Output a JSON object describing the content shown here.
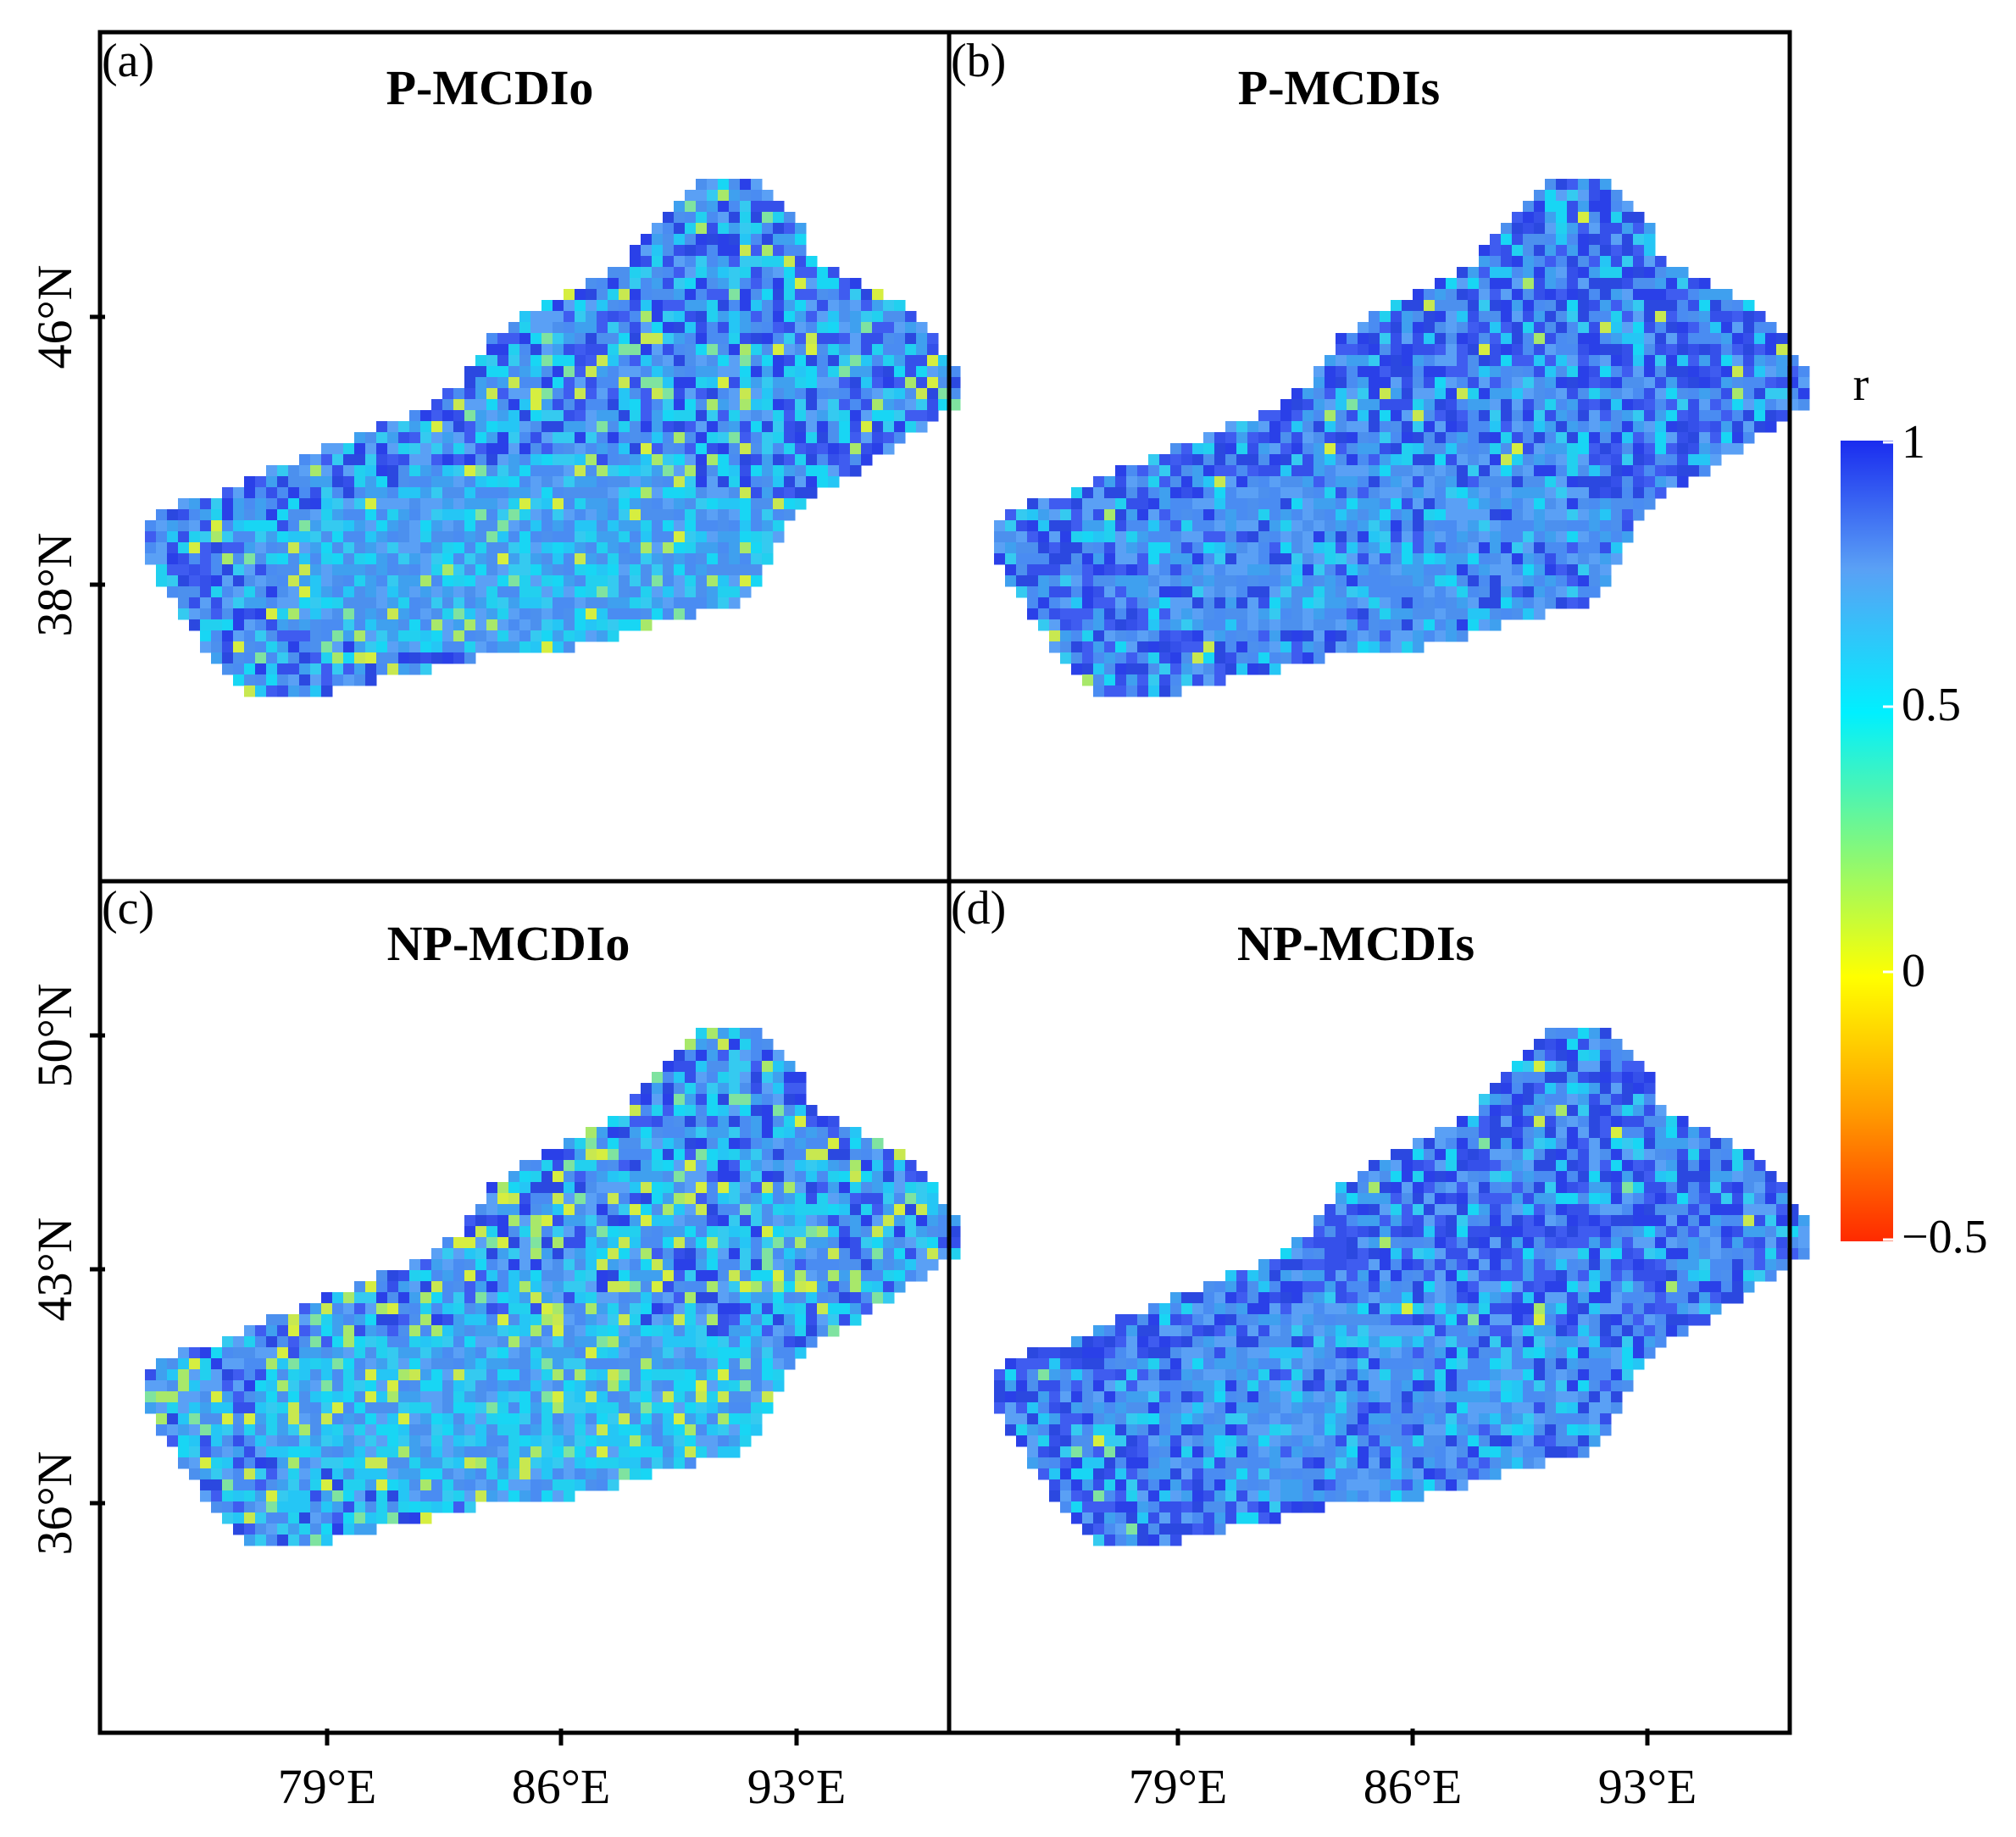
{
  "figure": {
    "panels": [
      {
        "id": "a",
        "letter": "(a)",
        "title": "P-MCDIo",
        "left_ticks": [
          "46°N",
          "38°N"
        ],
        "left_tick_lat": [
          46,
          38
        ],
        "mix": [
          0.3,
          0.4,
          0.22,
          0.08
        ]
      },
      {
        "id": "b",
        "letter": "(b)",
        "title": "P-MCDIs",
        "left_ticks": [],
        "left_tick_lat": [],
        "mix": [
          0.45,
          0.4,
          0.13,
          0.02
        ]
      },
      {
        "id": "c",
        "letter": "(c)",
        "title": "NP-MCDIo",
        "left_ticks": [
          "50°N",
          "43°N",
          "36°N"
        ],
        "left_tick_lat": [
          50,
          43,
          36
        ],
        "mix": [
          0.22,
          0.4,
          0.26,
          0.12
        ]
      },
      {
        "id": "d",
        "letter": "(d)",
        "title": "NP-MCDIs",
        "left_ticks": [],
        "left_tick_lat": [],
        "mix": [
          0.45,
          0.4,
          0.13,
          0.02
        ]
      }
    ],
    "x_ticks": [
      "79°E",
      "86°E",
      "93°E"
    ],
    "x_tick_lon": [
      79,
      86,
      93
    ],
    "colorbar": {
      "title": "r",
      "min": -0.5,
      "max": 1,
      "ticks": [
        1,
        0.5,
        0,
        -0.5
      ],
      "tick_labels": [
        "1",
        "0.5",
        "0",
        "−0.5"
      ],
      "colors": [
        "#ff2a00",
        "#ff9a00",
        "#ffff00",
        "#00f0ff",
        "#5aa0f5",
        "#1a2cef"
      ]
    }
  }
}
